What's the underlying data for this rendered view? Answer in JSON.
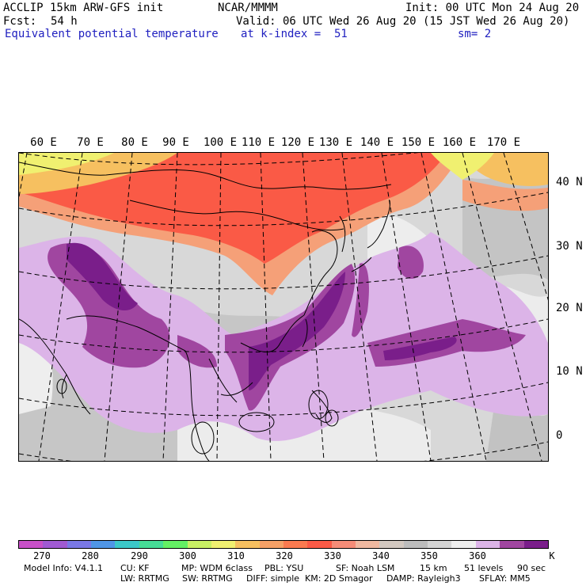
{
  "header": {
    "model_title": "ACCLIP 15km ARW-GFS init",
    "center": "NCAR/MMMM",
    "init": "Init: 00 UTC Mon 24 Aug 20",
    "fcst_label": "Fcst:",
    "fcst_value": "54 h",
    "valid": "Valid: 06 UTC Wed 26 Aug 20 (15 JST Wed 26 Aug 20)",
    "field_name": "Equivalent potential temperature",
    "level": "at k-index =  51",
    "smoothing": "sm= 2"
  },
  "map": {
    "lon_labels": [
      "60 E",
      "70 E",
      "80 E",
      "90 E",
      "100 E",
      "110 E",
      "120 E",
      "130 E",
      "140 E",
      "150 E",
      "160 E",
      "170 E"
    ],
    "lat_labels": [
      "40 N",
      "30 N",
      "20 N",
      "10 N",
      "0"
    ],
    "colors": {
      "background": "#e3e3e3",
      "coastline": "#000000",
      "grid": "#000000",
      "warm_dry": "#fa5a46",
      "warm_dry_edge": "#f5a078",
      "hot_north": "#f6c060",
      "yellow_far": "#f0f070",
      "moist_light": "#dcb4e8",
      "moist_mid": "#a046a0",
      "moist_dark": "#7a1e8a",
      "grey_light": "#eeeeee",
      "grey_mid": "#cfcfcf",
      "grey_dark": "#b7b7b7"
    }
  },
  "colorbar": {
    "swatches": [
      "#c850c8",
      "#a05ad2",
      "#7a78e6",
      "#5096e6",
      "#3cc8c8",
      "#46dc96",
      "#64f064",
      "#c8f064",
      "#f0f070",
      "#f6c060",
      "#f5a066",
      "#fa7a50",
      "#fa5a46",
      "#f58c78",
      "#f0b8a0",
      "#d2c8c0",
      "#bcbcbc",
      "#d4d4d4",
      "#eeeeee",
      "#dcb4e8",
      "#a046a0",
      "#7a1e8a"
    ],
    "labels": [
      "270",
      "280",
      "290",
      "300",
      "310",
      "320",
      "330",
      "340",
      "350",
      "360"
    ],
    "unit": "K"
  },
  "footer": {
    "line1": [
      "Model Info: V4.1.1",
      "CU: KF",
      "MP: WDM 6class",
      "PBL: YSU",
      "SF: Noah LSM",
      "15 km",
      "51 levels",
      "90 sec"
    ],
    "line2": [
      "LW: RRTMG",
      "SW: RRTMG",
      "DIFF: simple",
      "KM: 2D Smagor",
      "DAMP: Rayleigh3",
      "SFLAY: MM5"
    ]
  }
}
